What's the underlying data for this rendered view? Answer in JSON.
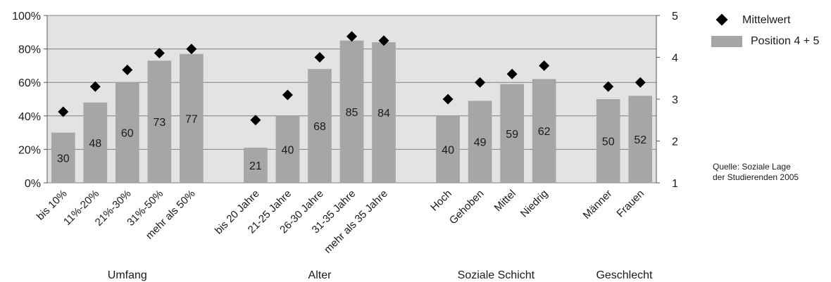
{
  "chart_data": {
    "type": "bar",
    "groups": [
      {
        "label": "Umfang",
        "categories": [
          "bis 10%",
          "11%-20%",
          "21%-30%",
          "31%-50%",
          "mehr als 50%"
        ],
        "values": [
          30,
          48,
          60,
          73,
          77
        ],
        "mittelwert": [
          2.7,
          3.3,
          3.7,
          4.1,
          4.2
        ]
      },
      {
        "label": "Alter",
        "categories": [
          "bis 20 Jahre",
          "21-25 Jahre",
          "26-30 Jahre",
          "31-35 Jahre",
          "mehr als 35 Jahre"
        ],
        "values": [
          21,
          40,
          68,
          85,
          84
        ],
        "mittelwert": [
          2.5,
          3.1,
          4.0,
          4.5,
          4.4
        ]
      },
      {
        "label": "Soziale Schicht",
        "categories": [
          "Hoch",
          "Gehoben",
          "Mittel",
          "Niedrig"
        ],
        "values": [
          40,
          49,
          59,
          62
        ],
        "mittelwert": [
          3.0,
          3.4,
          3.6,
          3.8
        ]
      },
      {
        "label": "Geschlecht",
        "categories": [
          "Männer",
          "Frauen"
        ],
        "values": [
          50,
          52
        ],
        "mittelwert": [
          3.3,
          3.4
        ]
      }
    ],
    "series": [
      {
        "name": "Mittelwert",
        "marker": "diamond",
        "axis": "right",
        "color": "#000000"
      },
      {
        "name": "Position 4 + 5",
        "marker": "bar",
        "axis": "left",
        "color": "#a6a6a6"
      }
    ],
    "y_left": {
      "min": 0,
      "max": 100,
      "ticks": [
        "0%",
        "20%",
        "40%",
        "60%",
        "80%",
        "100%"
      ]
    },
    "y_right": {
      "min": 1,
      "max": 5,
      "ticks": [
        "1",
        "2",
        "3",
        "4",
        "5"
      ]
    },
    "plot_background": "#e3e3e3",
    "grid": true,
    "legend_position": "top-right"
  },
  "legend": {
    "mittelwert": "Mittelwert",
    "position": "Position 4 + 5"
  },
  "source": {
    "line1": "Quelle: Soziale Lage",
    "line2": "der Studierenden 2005"
  }
}
